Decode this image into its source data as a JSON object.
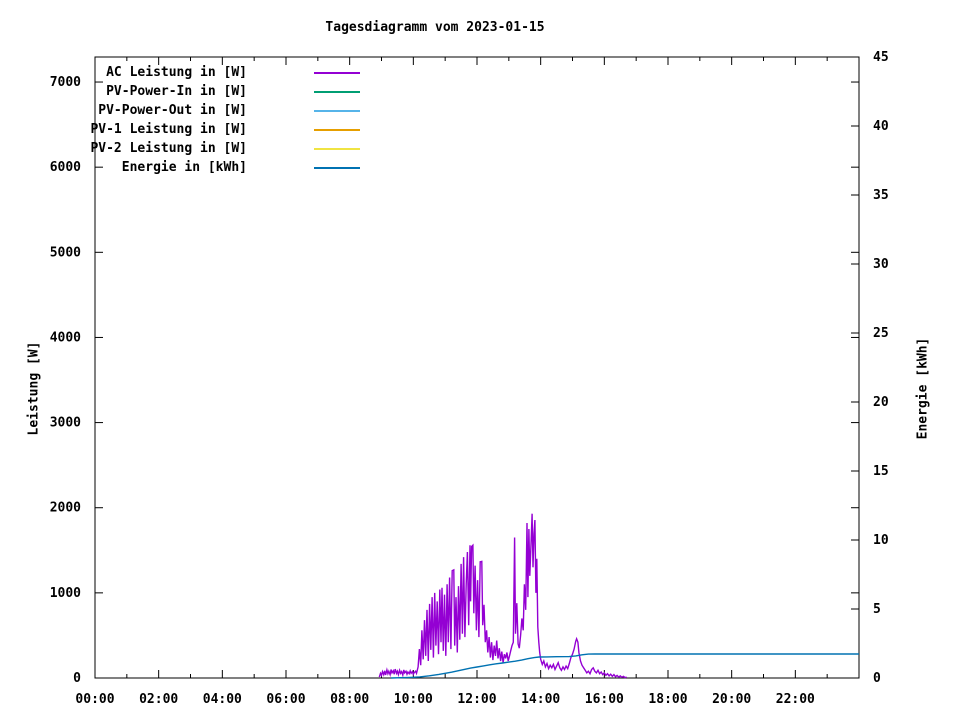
{
  "title": "Tagesdiagramm vom 2023-01-15",
  "chart_data": {
    "type": "line",
    "title": "Tagesdiagramm vom 2023-01-15",
    "background": "#ffffff",
    "axis_color": "#000000",
    "grid": false,
    "legend_position": "top-left-inside",
    "x_axis": {
      "unit": "time",
      "range_hours": [
        0,
        24
      ],
      "major_tick_every_hours": 2,
      "minor_tick_every_hours": 1,
      "tick_labels": [
        "00:00",
        "02:00",
        "04:00",
        "06:00",
        "08:00",
        "10:00",
        "12:00",
        "14:00",
        "16:00",
        "18:00",
        "20:00",
        "22:00"
      ]
    },
    "y_left": {
      "label": "Leistung [W]",
      "range": [
        0,
        7294
      ],
      "ticks": [
        0,
        1000,
        2000,
        3000,
        4000,
        5000,
        6000,
        7000
      ]
    },
    "y_right": {
      "label": "Energie [kWh]",
      "range": [
        0,
        45
      ],
      "ticks": [
        0,
        5,
        10,
        15,
        20,
        25,
        30,
        35,
        40,
        45
      ]
    },
    "legend": [
      {
        "label": "AC Leistung in [W]",
        "color": "#9400D3"
      },
      {
        "label": "PV-Power-In in [W]",
        "color": "#009E73"
      },
      {
        "label": "PV-Power-Out in [W]",
        "color": "#56B4E9"
      },
      {
        "label": "PV-1 Leistung in [W]",
        "color": "#E69F00"
      },
      {
        "label": "PV-2 Leistung in [W]",
        "color": "#F0E442"
      },
      {
        "label": "Energie in [kWh]",
        "color": "#0072B2"
      }
    ],
    "series": [
      {
        "name": "AC Leistung in [W]",
        "color": "#9400D3",
        "axis": "left",
        "points": [
          [
            8.93,
            10
          ],
          [
            8.97,
            55
          ],
          [
            9.0,
            30
          ],
          [
            9.03,
            75
          ],
          [
            9.07,
            40
          ],
          [
            9.1,
            85
          ],
          [
            9.13,
            35
          ],
          [
            9.17,
            95
          ],
          [
            9.2,
            50
          ],
          [
            9.23,
            80
          ],
          [
            9.27,
            40
          ],
          [
            9.3,
            100
          ],
          [
            9.33,
            60
          ],
          [
            9.37,
            85
          ],
          [
            9.4,
            45
          ],
          [
            9.43,
            105
          ],
          [
            9.47,
            55
          ],
          [
            9.5,
            80
          ],
          [
            9.53,
            40
          ],
          [
            9.57,
            90
          ],
          [
            9.6,
            55
          ],
          [
            9.63,
            75
          ],
          [
            9.67,
            35
          ],
          [
            9.7,
            95
          ],
          [
            9.73,
            60
          ],
          [
            9.77,
            80
          ],
          [
            9.8,
            45
          ],
          [
            9.83,
            70
          ],
          [
            9.87,
            50
          ],
          [
            9.9,
            85
          ],
          [
            9.93,
            55
          ],
          [
            9.97,
            75
          ],
          [
            10.0,
            45
          ],
          [
            10.03,
            65
          ],
          [
            10.07,
            80
          ],
          [
            10.1,
            55
          ],
          [
            10.15,
            130
          ],
          [
            10.19,
            340
          ],
          [
            10.23,
            150
          ],
          [
            10.27,
            560
          ],
          [
            10.31,
            220
          ],
          [
            10.35,
            680
          ],
          [
            10.39,
            260
          ],
          [
            10.43,
            800
          ],
          [
            10.47,
            200
          ],
          [
            10.51,
            870
          ],
          [
            10.55,
            330
          ],
          [
            10.59,
            950
          ],
          [
            10.63,
            240
          ],
          [
            10.67,
            1000
          ],
          [
            10.71,
            380
          ],
          [
            10.75,
            900
          ],
          [
            10.79,
            280
          ],
          [
            10.83,
            1040
          ],
          [
            10.87,
            420
          ],
          [
            10.9,
            1060
          ],
          [
            10.94,
            320
          ],
          [
            10.98,
            980
          ],
          [
            11.02,
            260
          ],
          [
            11.06,
            1100
          ],
          [
            11.1,
            420
          ],
          [
            11.14,
            1180
          ],
          [
            11.18,
            340
          ],
          [
            11.22,
            1260
          ],
          [
            11.27,
            1270
          ],
          [
            11.3,
            380
          ],
          [
            11.34,
            950
          ],
          [
            11.38,
            300
          ],
          [
            11.42,
            1080
          ],
          [
            11.46,
            450
          ],
          [
            11.5,
            1340
          ],
          [
            11.54,
            520
          ],
          [
            11.58,
            1420
          ],
          [
            11.62,
            480
          ],
          [
            11.66,
            1100
          ],
          [
            11.7,
            1480
          ],
          [
            11.74,
            620
          ],
          [
            11.78,
            1560
          ],
          [
            11.8,
            900
          ],
          [
            11.83,
            1545
          ],
          [
            11.87,
            1560
          ],
          [
            11.9,
            760
          ],
          [
            11.94,
            1320
          ],
          [
            11.98,
            560
          ],
          [
            12.02,
            1150
          ],
          [
            12.06,
            480
          ],
          [
            12.1,
            1365
          ],
          [
            12.15,
            1370
          ],
          [
            12.18,
            620
          ],
          [
            12.22,
            860
          ],
          [
            12.26,
            420
          ],
          [
            12.3,
            560
          ],
          [
            12.34,
            300
          ],
          [
            12.38,
            480
          ],
          [
            12.42,
            240
          ],
          [
            12.46,
            420
          ],
          [
            12.5,
            210
          ],
          [
            12.54,
            380
          ],
          [
            12.58,
            260
          ],
          [
            12.62,
            440
          ],
          [
            12.66,
            230
          ],
          [
            12.7,
            350
          ],
          [
            12.74,
            200
          ],
          [
            12.78,
            310
          ],
          [
            12.82,
            180
          ],
          [
            12.86,
            280
          ],
          [
            12.9,
            230
          ],
          [
            12.94,
            300
          ],
          [
            12.98,
            200
          ],
          [
            13.02,
            260
          ],
          [
            13.06,
            320
          ],
          [
            13.1,
            380
          ],
          [
            13.14,
            420
          ],
          [
            13.18,
            1650
          ],
          [
            13.21,
            520
          ],
          [
            13.25,
            880
          ],
          [
            13.29,
            400
          ],
          [
            13.33,
            350
          ],
          [
            13.37,
            500
          ],
          [
            13.41,
            700
          ],
          [
            13.45,
            560
          ],
          [
            13.49,
            1100
          ],
          [
            13.53,
            800
          ],
          [
            13.57,
            1820
          ],
          [
            13.6,
            950
          ],
          [
            13.63,
            1750
          ],
          [
            13.66,
            1200
          ],
          [
            13.7,
            1600
          ],
          [
            13.73,
            1930
          ],
          [
            13.76,
            1300
          ],
          [
            13.79,
            1700
          ],
          [
            13.82,
            1856
          ],
          [
            13.85,
            1000
          ],
          [
            13.88,
            1400
          ],
          [
            13.91,
            600
          ],
          [
            13.94,
            420
          ],
          [
            13.97,
            300
          ],
          [
            14.0,
            220
          ],
          [
            14.05,
            160
          ],
          [
            14.1,
            200
          ],
          [
            14.15,
            130
          ],
          [
            14.2,
            170
          ],
          [
            14.25,
            110
          ],
          [
            14.3,
            150
          ],
          [
            14.35,
            120
          ],
          [
            14.4,
            160
          ],
          [
            14.45,
            100
          ],
          [
            14.5,
            140
          ],
          [
            14.55,
            180
          ],
          [
            14.6,
            120
          ],
          [
            14.65,
            90
          ],
          [
            14.7,
            130
          ],
          [
            14.75,
            100
          ],
          [
            14.8,
            140
          ],
          [
            14.85,
            110
          ],
          [
            14.9,
            170
          ],
          [
            14.95,
            240
          ],
          [
            15.0,
            280
          ],
          [
            15.05,
            340
          ],
          [
            15.1,
            430
          ],
          [
            15.13,
            460
          ],
          [
            15.17,
            420
          ],
          [
            15.2,
            300
          ],
          [
            15.25,
            200
          ],
          [
            15.3,
            150
          ],
          [
            15.35,
            120
          ],
          [
            15.4,
            90
          ],
          [
            15.45,
            60
          ],
          [
            15.5,
            80
          ],
          [
            15.55,
            50
          ],
          [
            15.6,
            100
          ],
          [
            15.65,
            120
          ],
          [
            15.7,
            80
          ],
          [
            15.75,
            60
          ],
          [
            15.8,
            90
          ],
          [
            15.85,
            50
          ],
          [
            15.9,
            70
          ],
          [
            15.95,
            40
          ],
          [
            16.0,
            60
          ],
          [
            16.05,
            30
          ],
          [
            16.1,
            50
          ],
          [
            16.15,
            25
          ],
          [
            16.2,
            45
          ],
          [
            16.25,
            20
          ],
          [
            16.3,
            40
          ],
          [
            16.35,
            15
          ],
          [
            16.4,
            30
          ],
          [
            16.45,
            10
          ],
          [
            16.5,
            25
          ],
          [
            16.55,
            8
          ],
          [
            16.6,
            20
          ],
          [
            16.65,
            5
          ],
          [
            16.7,
            12
          ]
        ]
      },
      {
        "name": "PV-Power-In in [W]",
        "color": "#009E73",
        "axis": "left",
        "points": []
      },
      {
        "name": "PV-Power-Out in [W]",
        "color": "#56B4E9",
        "axis": "left",
        "points": []
      },
      {
        "name": "PV-1 Leistung in [W]",
        "color": "#E69F00",
        "axis": "left",
        "points": []
      },
      {
        "name": "PV-2 Leistung in [W]",
        "color": "#F0E442",
        "axis": "left",
        "points": []
      },
      {
        "name": "Energie in [kWh]",
        "color": "#0072B2",
        "axis": "right",
        "points": [
          [
            9.3,
            0
          ],
          [
            9.6,
            0.02
          ],
          [
            9.9,
            0.04
          ],
          [
            10.2,
            0.08
          ],
          [
            10.5,
            0.16
          ],
          [
            10.8,
            0.26
          ],
          [
            11.0,
            0.34
          ],
          [
            11.2,
            0.42
          ],
          [
            11.4,
            0.52
          ],
          [
            11.6,
            0.62
          ],
          [
            11.8,
            0.72
          ],
          [
            12.0,
            0.8
          ],
          [
            12.2,
            0.88
          ],
          [
            12.4,
            0.96
          ],
          [
            12.6,
            1.03
          ],
          [
            12.8,
            1.09
          ],
          [
            13.0,
            1.15
          ],
          [
            13.2,
            1.22
          ],
          [
            13.4,
            1.3
          ],
          [
            13.6,
            1.4
          ],
          [
            13.8,
            1.48
          ],
          [
            13.95,
            1.52
          ],
          [
            14.2,
            1.53
          ],
          [
            14.5,
            1.54
          ],
          [
            14.9,
            1.55
          ],
          [
            15.1,
            1.6
          ],
          [
            15.3,
            1.68
          ],
          [
            15.5,
            1.73
          ],
          [
            15.7,
            1.74
          ],
          [
            24.0,
            1.74
          ]
        ]
      }
    ]
  }
}
